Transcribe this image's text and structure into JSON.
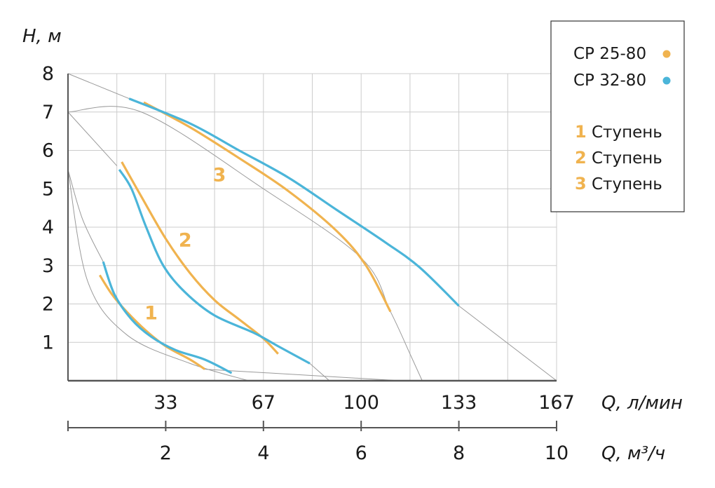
{
  "colors": {
    "orange": "#f0b34f",
    "blue": "#4bb5d9",
    "grid": "#cccccc",
    "guide": "#9a9a9a",
    "axis": "#555555"
  },
  "chart_data": {
    "type": "line",
    "ylabel": "H, м",
    "xlabel_top": "Q, л/мин",
    "xlabel_bottom": "Q, м³/ч",
    "xlim": [
      0,
      10
    ],
    "ylim": [
      0,
      8
    ],
    "grid": true,
    "y_ticks": [
      "1",
      "2",
      "3",
      "4",
      "5",
      "6",
      "7",
      "8"
    ],
    "x_ticks_top": [
      "33",
      "67",
      "100",
      "133",
      "167"
    ],
    "x_ticks_bottom": [
      "2",
      "4",
      "6",
      "8",
      "10"
    ],
    "legend_position": "top-right",
    "legend": {
      "models": [
        {
          "label": "CP 25-80",
          "color": "#f0b34f"
        },
        {
          "label": "CP 32-80",
          "color": "#4bb5d9"
        }
      ],
      "stages": [
        {
          "num": "1",
          "text": "Ступень"
        },
        {
          "num": "2",
          "text": "Ступень"
        },
        {
          "num": "3",
          "text": "Ступень"
        }
      ]
    },
    "curve_labels": [
      {
        "text": "1",
        "x": 1.7,
        "y": 1.6
      },
      {
        "text": "2",
        "x": 2.4,
        "y": 3.5
      },
      {
        "text": "3",
        "x": 3.1,
        "y": 5.2
      }
    ],
    "series": [
      {
        "name": "CP 25-80",
        "stage": "1",
        "color": "orange",
        "points": [
          [
            0.65,
            2.75
          ],
          [
            0.9,
            2.25
          ],
          [
            1.2,
            1.8
          ],
          [
            1.6,
            1.3
          ],
          [
            2.0,
            0.9
          ],
          [
            2.5,
            0.55
          ],
          [
            2.8,
            0.3
          ]
        ]
      },
      {
        "name": "CP 32-80",
        "stage": "1",
        "color": "blue",
        "points": [
          [
            0.72,
            3.1
          ],
          [
            0.95,
            2.25
          ],
          [
            1.3,
            1.6
          ],
          [
            1.7,
            1.15
          ],
          [
            2.2,
            0.8
          ],
          [
            2.8,
            0.55
          ],
          [
            3.35,
            0.2
          ]
        ]
      },
      {
        "name": "CP 25-80",
        "stage": "2",
        "color": "orange",
        "points": [
          [
            1.1,
            5.7
          ],
          [
            1.5,
            4.8
          ],
          [
            2.0,
            3.7
          ],
          [
            2.5,
            2.8
          ],
          [
            3.0,
            2.1
          ],
          [
            3.5,
            1.6
          ],
          [
            4.0,
            1.1
          ],
          [
            4.3,
            0.7
          ]
        ]
      },
      {
        "name": "CP 32-80",
        "stage": "2",
        "color": "blue",
        "points": [
          [
            1.05,
            5.5
          ],
          [
            1.3,
            5.0
          ],
          [
            1.6,
            4.0
          ],
          [
            1.95,
            3.0
          ],
          [
            2.4,
            2.3
          ],
          [
            3.0,
            1.7
          ],
          [
            3.8,
            1.25
          ],
          [
            4.3,
            0.9
          ],
          [
            4.95,
            0.45
          ]
        ]
      },
      {
        "name": "CP 25-80",
        "stage": "3",
        "color": "orange",
        "points": [
          [
            1.55,
            7.25
          ],
          [
            2.5,
            6.6
          ],
          [
            3.5,
            5.8
          ],
          [
            4.5,
            4.95
          ],
          [
            5.5,
            3.9
          ],
          [
            6.1,
            3.0
          ],
          [
            6.6,
            1.8
          ]
        ]
      },
      {
        "name": "CP 32-80",
        "stage": "3",
        "color": "blue",
        "points": [
          [
            1.25,
            7.35
          ],
          [
            2.5,
            6.7
          ],
          [
            3.5,
            6.0
          ],
          [
            4.5,
            5.3
          ],
          [
            5.5,
            4.45
          ],
          [
            6.5,
            3.6
          ],
          [
            7.2,
            2.95
          ],
          [
            8.0,
            1.95
          ]
        ]
      }
    ],
    "guide_lines": [
      {
        "points": [
          [
            0,
            8
          ],
          [
            1.25,
            7.35
          ]
        ]
      },
      {
        "points": [
          [
            8.0,
            1.95
          ],
          [
            10,
            0
          ]
        ]
      },
      {
        "points": [
          [
            0,
            7
          ],
          [
            1.0,
            5.6
          ]
        ]
      },
      {
        "points": [
          [
            0,
            7
          ],
          [
            1.5,
            7.0
          ],
          [
            4.0,
            5.0
          ],
          [
            6.0,
            3.2
          ],
          [
            6.6,
            1.8
          ],
          [
            7.0,
            0.7
          ],
          [
            7.25,
            0
          ]
        ]
      },
      {
        "points": [
          [
            0,
            5.5
          ],
          [
            0.3,
            4.2
          ],
          [
            0.72,
            3.1
          ]
        ]
      },
      {
        "points": [
          [
            0,
            5.5
          ],
          [
            0.4,
            2.6
          ],
          [
            1.2,
            1.2
          ],
          [
            2.5,
            0.45
          ],
          [
            3.7,
            0
          ]
        ]
      },
      {
        "points": [
          [
            4.95,
            0.45
          ],
          [
            5.35,
            0
          ]
        ]
      },
      {
        "points": [
          [
            2.8,
            0.3
          ],
          [
            6.8,
            0
          ]
        ]
      }
    ]
  }
}
